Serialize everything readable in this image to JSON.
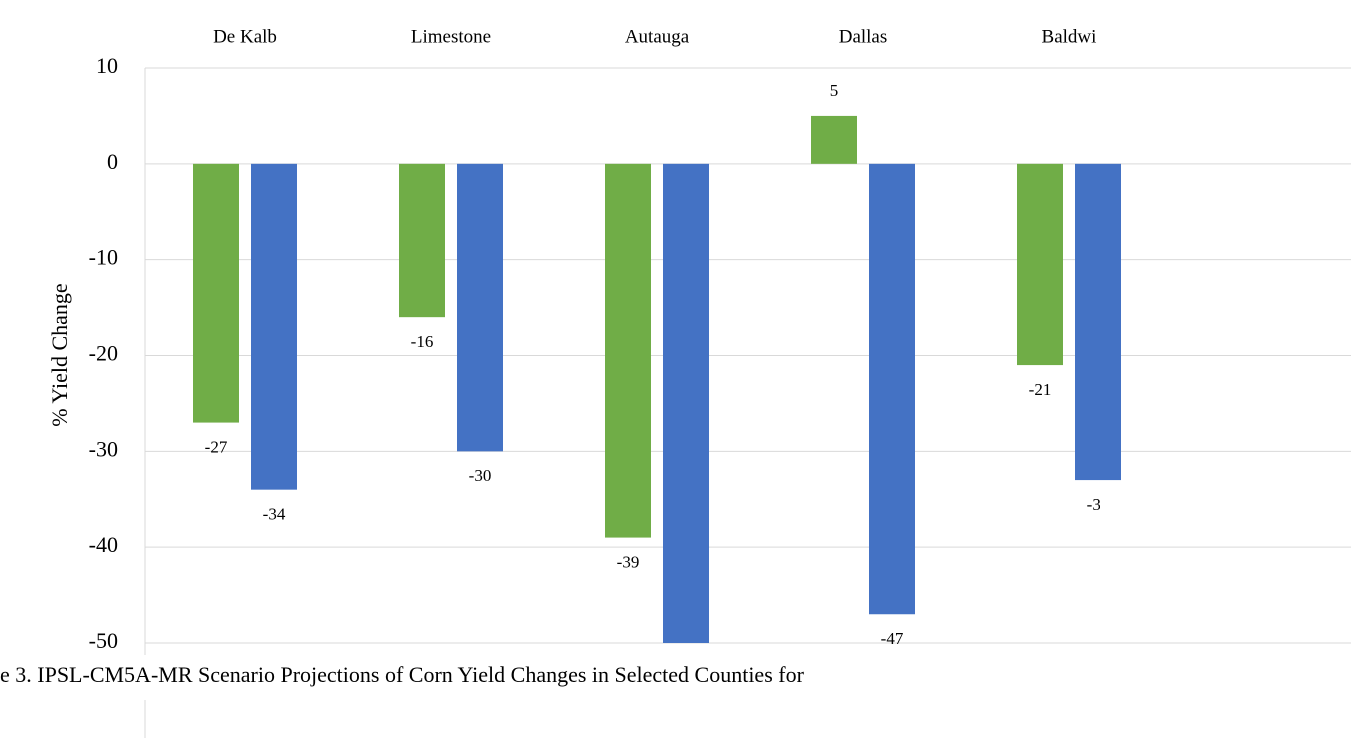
{
  "chart_data": {
    "type": "bar",
    "categories": [
      "De Kalb",
      "Limestone",
      "Autauga",
      "Dallas",
      "Baldwi"
    ],
    "series": [
      {
        "color": "#70ad47",
        "values": [
          -27,
          -16,
          -39,
          5,
          -21
        ]
      },
      {
        "color": "#4472c4",
        "values": [
          -34,
          -30,
          -50,
          -47,
          -33
        ]
      }
    ],
    "y_label": "% Yield Change",
    "caption": "e 3. IPSL-CM5A-MR Scenario Projections of Corn Yield Changes in Selected Counties for",
    "ylim": [
      -50,
      10
    ],
    "yticks": [
      10,
      0,
      -10,
      -20,
      -30,
      -40,
      -50
    ],
    "grid": true
  }
}
